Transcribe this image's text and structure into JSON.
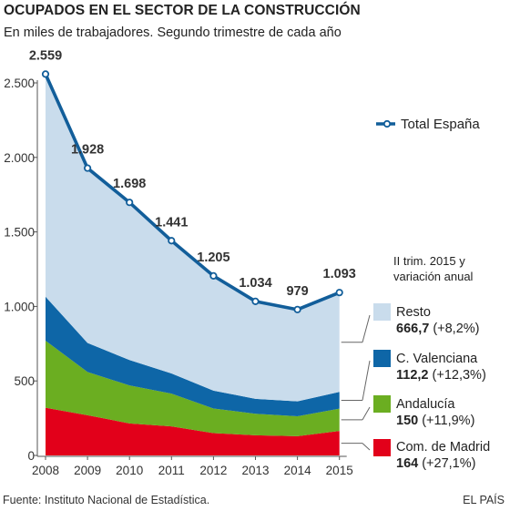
{
  "header": {
    "title": "OCUPADOS EN EL SECTOR DE LA CONSTRUCCIÓN",
    "subtitle": "En miles de trabajadores. Segundo trimestre de cada año"
  },
  "footer": {
    "source": "Fuente: Instituto Nacional de Estadística.",
    "brand": "EL PAÍS"
  },
  "colors": {
    "total": "#125e9a",
    "resto": "#c9dcec",
    "valenciana": "#0e66a7",
    "andalucia": "#6bae21",
    "madrid": "#e2001a",
    "axis": "#555555"
  },
  "legend_note": [
    "II trim. 2015 y",
    "variación anual"
  ],
  "chart_data": {
    "type": "area",
    "stacked": true,
    "x": [
      "2008",
      "2009",
      "2010",
      "2011",
      "2012",
      "2013",
      "2014",
      "2015"
    ],
    "ylim": [
      0,
      2600
    ],
    "yticks": [
      0,
      500,
      1000,
      1500,
      2000,
      2500
    ],
    "ytick_labels": [
      "0",
      "500",
      "1.000",
      "1.500",
      "2.000",
      "2.500"
    ],
    "grid": false,
    "series": [
      {
        "name": "Com. de Madrid",
        "key": "madrid",
        "values": [
          320,
          270,
          215,
          195,
          150,
          135,
          129,
          164
        ],
        "value_label": "164",
        "change_label": "(+27,1%)"
      },
      {
        "name": "Andalucía",
        "key": "andalucia",
        "values": [
          450,
          290,
          255,
          220,
          165,
          145,
          134,
          150
        ],
        "value_label": "150",
        "change_label": "(+11,9%)"
      },
      {
        "name": "C. Valenciana",
        "key": "valenciana",
        "values": [
          295,
          195,
          170,
          135,
          120,
          100,
          100,
          112.2
        ],
        "value_label": "112,2",
        "change_label": "(+12,3%)"
      },
      {
        "name": "Resto",
        "key": "resto",
        "values": [
          1494,
          1173,
          1058,
          891,
          770,
          654,
          616,
          666.7
        ],
        "value_label": "666,7",
        "change_label": "(+8,2%)"
      }
    ],
    "total": {
      "name": "Total España",
      "values": [
        2559,
        1928,
        1698,
        1441,
        1205,
        1034,
        979,
        1093
      ],
      "labels": [
        "2.559",
        "1.928",
        "1.698",
        "1.441",
        "1.205",
        "1.034",
        "979",
        "1.093"
      ]
    }
  }
}
